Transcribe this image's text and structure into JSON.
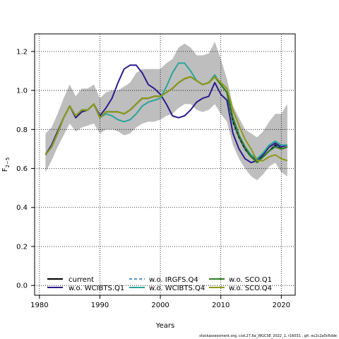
{
  "chart_data": {
    "type": "line",
    "xlabel": "Years",
    "ylabel": "F2-5",
    "ylabel_main": "F",
    "ylabel_sub": "2−5",
    "xlim": [
      1979.2,
      2022.3
    ],
    "ylim": [
      -0.05,
      1.29
    ],
    "xticks": [
      1980,
      1990,
      2000,
      2010,
      2020
    ],
    "yticks": [
      0.0,
      0.2,
      0.4,
      0.6,
      0.8,
      1.0,
      1.2
    ],
    "ytick_labels": [
      "0.0",
      "0.2",
      "0.4",
      "0.6",
      "0.8",
      "1.0",
      "1.2"
    ],
    "grid": "dotted",
    "legend_position": "bottom-left",
    "footer": "stockassessment.org, cod.27.6a_WGCSE_2022_1, r16031 , git: ec2c2a0c6dde",
    "x": [
      1981,
      1982,
      1983,
      1984,
      1985,
      1986,
      1987,
      1988,
      1989,
      1990,
      1991,
      1992,
      1993,
      1994,
      1995,
      1996,
      1997,
      1998,
      1999,
      2000,
      2001,
      2002,
      2003,
      2004,
      2005,
      2006,
      2007,
      2008,
      2009,
      2010,
      2011,
      2012,
      2013,
      2014,
      2015,
      2016,
      2017,
      2018,
      2019,
      2020,
      2021
    ],
    "band": {
      "color": "#bebebe",
      "upper": [
        0.78,
        0.81,
        0.88,
        0.96,
        1.03,
        0.97,
        1.01,
        1.01,
        1.03,
        0.96,
        0.99,
        1.0,
        1.0,
        1.02,
        1.04,
        1.09,
        1.11,
        1.11,
        1.11,
        1.11,
        1.14,
        1.16,
        1.22,
        1.24,
        1.22,
        1.18,
        1.18,
        1.19,
        1.25,
        1.16,
        1.06,
        0.92,
        0.86,
        0.8,
        0.78,
        0.76,
        0.79,
        0.84,
        0.88,
        0.88,
        0.93
      ],
      "lower": [
        0.58,
        0.64,
        0.71,
        0.77,
        0.83,
        0.79,
        0.81,
        0.82,
        0.83,
        0.78,
        0.8,
        0.8,
        0.79,
        0.77,
        0.78,
        0.81,
        0.83,
        0.84,
        0.84,
        0.85,
        0.87,
        0.88,
        0.91,
        0.93,
        0.93,
        0.9,
        0.89,
        0.9,
        0.93,
        0.88,
        0.84,
        0.72,
        0.65,
        0.6,
        0.56,
        0.54,
        0.57,
        0.61,
        0.63,
        0.58,
        0.56
      ]
    },
    "series": [
      {
        "name": "current",
        "color": "#000000",
        "dash": "none",
        "width": 2,
        "values": [
          0.67,
          0.71,
          0.78,
          0.86,
          0.92,
          0.87,
          0.9,
          0.9,
          0.93,
          0.86,
          0.89,
          0.89,
          0.89,
          0.88,
          0.9,
          0.93,
          0.96,
          0.96,
          0.97,
          0.97,
          0.99,
          1.01,
          1.04,
          1.06,
          1.07,
          1.05,
          1.03,
          1.04,
          1.07,
          1.03,
          0.99,
          0.84,
          0.76,
          0.7,
          0.66,
          0.64,
          0.66,
          0.69,
          0.72,
          0.7,
          0.71
        ]
      },
      {
        "name": "w.o. WCIBTS.Q1",
        "color": "#2b1b8c",
        "dash": "none",
        "width": 2,
        "values": [
          0.67,
          0.72,
          0.79,
          0.86,
          0.92,
          0.86,
          0.89,
          0.9,
          0.93,
          0.87,
          0.91,
          0.96,
          1.04,
          1.11,
          1.13,
          1.13,
          1.09,
          1.03,
          1.01,
          0.98,
          0.93,
          0.87,
          0.86,
          0.87,
          0.9,
          0.94,
          0.96,
          0.97,
          1.04,
          0.98,
          0.95,
          0.78,
          0.7,
          0.65,
          0.63,
          0.64,
          0.67,
          0.71,
          0.73,
          0.71,
          0.72
        ]
      },
      {
        "name": "w.o. IRGFS.Q4",
        "color": "#1f6fb5",
        "dash": "4,3",
        "width": 1.5,
        "values": [
          0.67,
          0.71,
          0.78,
          0.86,
          0.92,
          0.87,
          0.9,
          0.9,
          0.93,
          0.86,
          0.89,
          0.89,
          0.89,
          0.88,
          0.9,
          0.93,
          0.96,
          0.96,
          0.97,
          0.97,
          0.99,
          1.01,
          1.04,
          1.06,
          1.07,
          1.05,
          1.03,
          1.04,
          1.07,
          1.03,
          0.99,
          0.84,
          0.76,
          0.7,
          0.66,
          0.64,
          0.66,
          0.69,
          0.72,
          0.7,
          0.71
        ]
      },
      {
        "name": "w.o. WCIBTS.Q4",
        "color": "#2aa59a",
        "dash": "none",
        "width": 2,
        "values": [
          0.67,
          0.71,
          0.78,
          0.86,
          0.92,
          0.87,
          0.9,
          0.9,
          0.93,
          0.86,
          0.88,
          0.87,
          0.85,
          0.84,
          0.85,
          0.88,
          0.92,
          0.94,
          0.95,
          0.96,
          1.02,
          1.09,
          1.14,
          1.14,
          1.1,
          1.05,
          1.03,
          1.04,
          1.08,
          1.03,
          0.99,
          0.86,
          0.77,
          0.71,
          0.67,
          0.65,
          0.68,
          0.72,
          0.74,
          0.72,
          0.72
        ]
      },
      {
        "name": "w.o. SCO.Q1",
        "color": "#2e7d1f",
        "dash": "none",
        "width": 2,
        "values": [
          0.67,
          0.71,
          0.78,
          0.86,
          0.92,
          0.87,
          0.9,
          0.9,
          0.93,
          0.86,
          0.89,
          0.89,
          0.89,
          0.88,
          0.9,
          0.93,
          0.96,
          0.96,
          0.97,
          0.97,
          0.99,
          1.01,
          1.04,
          1.06,
          1.07,
          1.05,
          1.03,
          1.04,
          1.07,
          1.03,
          0.99,
          0.86,
          0.77,
          0.71,
          0.66,
          0.63,
          0.66,
          0.69,
          0.71,
          0.7,
          0.71
        ]
      },
      {
        "name": "w.o. SCO.Q4",
        "color": "#8f9a18",
        "dash": "none",
        "width": 2,
        "values": [
          0.67,
          0.71,
          0.78,
          0.86,
          0.92,
          0.87,
          0.9,
          0.9,
          0.93,
          0.86,
          0.89,
          0.89,
          0.89,
          0.88,
          0.9,
          0.93,
          0.96,
          0.96,
          0.97,
          0.97,
          0.99,
          1.01,
          1.04,
          1.06,
          1.07,
          1.05,
          1.03,
          1.04,
          1.07,
          1.04,
          1.01,
          0.9,
          0.82,
          0.75,
          0.7,
          0.64,
          0.64,
          0.66,
          0.67,
          0.65,
          0.64
        ]
      }
    ]
  }
}
